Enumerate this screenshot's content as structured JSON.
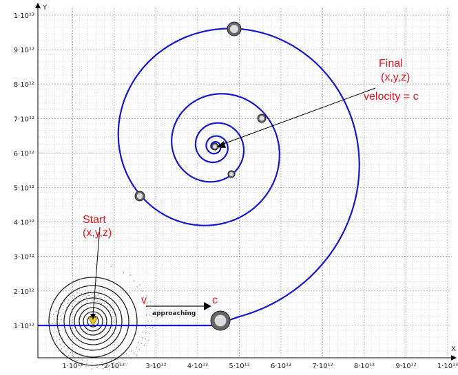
{
  "axes": {
    "x_name": "X",
    "y_name": "Y",
    "x_ticks": [
      "1·10¹²",
      "2·10¹²",
      "3·10¹²",
      "4·10¹²",
      "5·10¹²",
      "6·10¹²",
      "7·10¹²",
      "8·10¹²",
      "9·10¹²",
      "1·10¹³"
    ],
    "y_ticks": [
      "1·10¹²",
      "2·10¹²",
      "3·10¹²",
      "4·10¹²",
      "5·10¹²",
      "6·10¹²",
      "7·10¹²",
      "8·10¹²",
      "9·10¹²",
      "1·10¹³"
    ]
  },
  "annotations": {
    "final": "Final",
    "final_coords": "(x,y,z)",
    "final_velocity": "velocity = c",
    "start": "Start",
    "start_coords": "(x,y,z)",
    "v": "v",
    "approaching": "approaching",
    "c": "c"
  }
}
